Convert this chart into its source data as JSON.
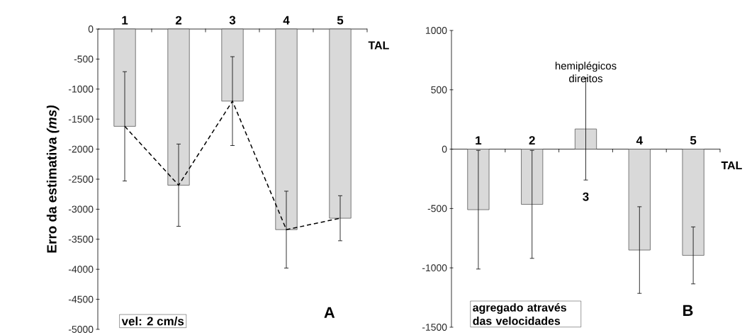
{
  "chart_data": [
    {
      "type": "bar",
      "categories": [
        "1",
        "2",
        "3",
        "4",
        "5"
      ],
      "xlabel": "TAL",
      "ylabel": "Erro da estimativa *(ms)*",
      "ylim": [
        -5000,
        0
      ],
      "yticks": [
        -5000,
        -4500,
        -4000,
        -3500,
        -3000,
        -2500,
        -2000,
        -1500,
        -1000,
        -500,
        0
      ],
      "series": [
        {
          "color": "#d9d9d9",
          "values": [
            -1620,
            -2600,
            -1200,
            -3340,
            -3150
          ],
          "errors": [
            910,
            685,
            740,
            640,
            375
          ]
        },
        {
          "type": "line",
          "color": "#000000",
          "line_style": "dashed",
          "values": [
            -1620,
            -2600,
            -1200,
            -3340,
            -3150
          ]
        }
      ],
      "annotations": [
        "vel: 2 cm/s",
        "A"
      ]
    },
    {
      "type": "bar",
      "categories": [
        "1",
        "2",
        "3",
        "4",
        "5"
      ],
      "xlabel": "TAL",
      "ylim": [
        -1500,
        1000
      ],
      "yticks": [
        -1500,
        -1000,
        -500,
        0,
        500,
        1000
      ],
      "series": [
        {
          "color": "#d9d9d9",
          "values": [
            -510,
            -465,
            170,
            -850,
            -895
          ],
          "errors": [
            500,
            455,
            430,
            365,
            240
          ]
        }
      ],
      "annotations": [
        "hemiplégicos direitos",
        "agregado através das velocidades",
        "B"
      ]
    }
  ]
}
